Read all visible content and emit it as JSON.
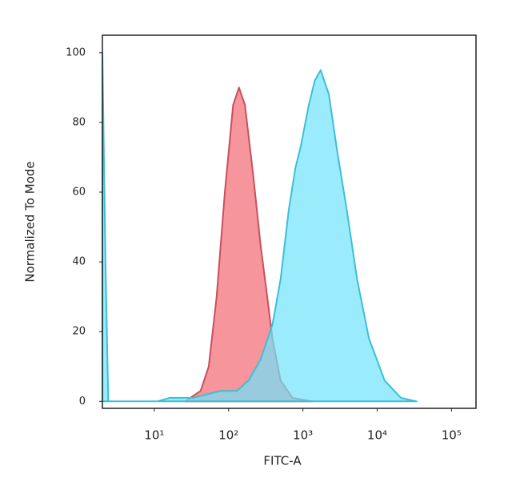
{
  "chart_data": {
    "type": "area",
    "xlabel": "FITC-A",
    "ylabel": "Normalized To Mode",
    "xscale": "log",
    "xlim": [
      2,
      214000
    ],
    "ylim": [
      -2,
      105
    ],
    "xticks": [
      {
        "value": 10,
        "label": "10¹"
      },
      {
        "value": 100,
        "label": "10²"
      },
      {
        "value": 1000,
        "label": "10³"
      },
      {
        "value": 10000,
        "label": "10⁴"
      },
      {
        "value": 100000,
        "label": "10⁵"
      }
    ],
    "yticks": [
      0,
      20,
      40,
      60,
      80,
      100
    ],
    "series": [
      {
        "color": "#f4828a",
        "line_color": "#c8505e",
        "x": [
          26,
          42,
          54,
          69,
          89,
          115,
          138,
          166,
          214,
          269,
          331,
          389,
          501,
          725,
          1350
        ],
        "values": [
          0,
          3,
          10,
          30,
          60,
          85,
          90,
          85,
          65,
          45,
          30,
          18,
          6,
          1,
          0
        ]
      },
      {
        "color": "#6fe3fa",
        "line_color": "#3cbfd6",
        "x": [
          2,
          2.2,
          2.4,
          11,
          16,
          33,
          78,
          129,
          186,
          269,
          389,
          501,
          646,
          794,
          933,
          1202,
          1445,
          1738,
          2239,
          2884,
          3890,
          5370,
          7762,
          12589,
          20893,
          33884
        ],
        "values": [
          100,
          40,
          0,
          0,
          1,
          1,
          3,
          3,
          6,
          12,
          22,
          35,
          55,
          67,
          73,
          85,
          92,
          95,
          88,
          72,
          55,
          35,
          18,
          6,
          1,
          0
        ]
      }
    ]
  }
}
